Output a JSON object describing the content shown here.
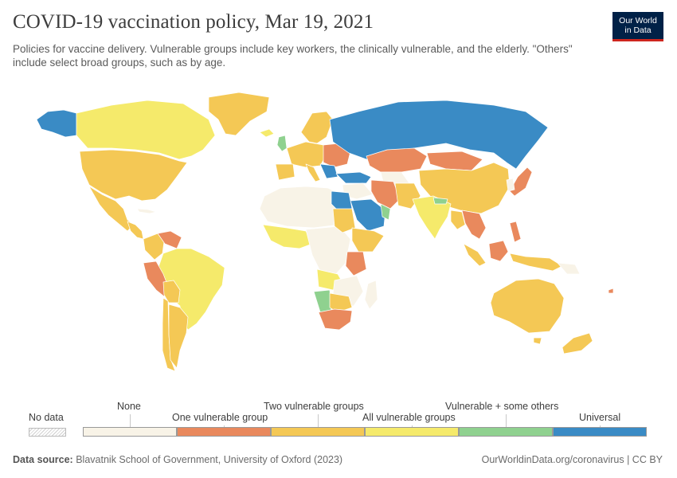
{
  "header": {
    "title": "COVID-19 vaccination policy, Mar 19, 2021",
    "subtitle": "Policies for vaccine delivery. Vulnerable groups include key workers, the clinically vulnerable, and the elderly. \"Others\" include select broad groups, such as by age."
  },
  "logo": {
    "line1": "Our World",
    "line2": "in Data"
  },
  "legend": {
    "no_data_label": "No data",
    "categories": [
      {
        "label": "None",
        "color": "#f8f3e7"
      },
      {
        "label": "One vulnerable group",
        "color": "#e9895d"
      },
      {
        "label": "Two vulnerable groups",
        "color": "#f4c855"
      },
      {
        "label": "All vulnerable groups",
        "color": "#f5ea6b"
      },
      {
        "label": "Vulnerable + some others",
        "color": "#8fd18f"
      },
      {
        "label": "Universal",
        "color": "#3a8bc5"
      }
    ]
  },
  "map_colors": {
    "none": "#f8f3e7",
    "one": "#e9895d",
    "two": "#f4c855",
    "all": "#f5ea6b",
    "some_others": "#8fd18f",
    "universal": "#3a8bc5",
    "border": "#ffffff"
  },
  "footer": {
    "source_label": "Data source:",
    "source_text": "Blavatnik School of Government, University of Oxford (2023)",
    "right_text": "OurWorldinData.org/coronavirus | CC BY"
  }
}
